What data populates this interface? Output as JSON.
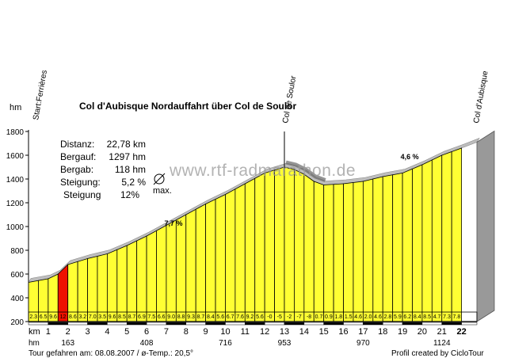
{
  "header": {
    "unit_top": "hm",
    "title": "Col d'Aubisque Nordauffahrt über Col de Soulor"
  },
  "stats": [
    {
      "label": "Distanz:",
      "value": "22,78 km"
    },
    {
      "label": "Bergauf:",
      "value": "1297 hm"
    },
    {
      "label": "Bergab:",
      "value": "118 hm"
    },
    {
      "label": "Steigung:",
      "value": "5,2 %"
    },
    {
      "label": "Steigung",
      "value": "12%"
    }
  ],
  "max_label": "max.",
  "watermark": "www.rtf-radmarathon.de",
  "footer": {
    "left": "Tour gefahren am: 08.08.2007 / ø-Temp.: 20,5°",
    "right": "Profil created by CicloTour"
  },
  "colors": {
    "fill": "#ffff33",
    "steep": "#ee1100",
    "outline": "#000000",
    "shadow": "#999999"
  },
  "chart_data": {
    "type": "area",
    "ylim": [
      200,
      1800
    ],
    "xlim": [
      0,
      22.78
    ],
    "y_ticks": [
      "200",
      "400",
      "600",
      "800",
      "1000",
      "1200",
      "1400",
      "1600",
      "1800"
    ],
    "x_label": "km",
    "x_ticks": [
      "1",
      "2",
      "3",
      "4",
      "5",
      "6",
      "7",
      "8",
      "9",
      "10",
      "11",
      "12",
      "13",
      "14",
      "15",
      "16",
      "17",
      "18",
      "19",
      "20",
      "21",
      "22"
    ],
    "hm_label": "hm",
    "hm_marks": [
      {
        "km": 2,
        "text": "163"
      },
      {
        "km": 6,
        "text": "408"
      },
      {
        "km": 10,
        "text": "716"
      },
      {
        "km": 13,
        "text": "953"
      },
      {
        "km": 17,
        "text": "970"
      },
      {
        "km": 21,
        "text": "1124"
      }
    ],
    "waypoints": [
      {
        "km": 0,
        "name": "Start:Ferrières"
      },
      {
        "km": 13,
        "name": "Col de Soulor"
      },
      {
        "km": 22.78,
        "name": "Col d'Aubisque"
      }
    ],
    "annotations": [
      {
        "km": 6.9,
        "elevation": 1020,
        "text": "7,7 %"
      },
      {
        "km": 18.9,
        "elevation": 1580,
        "text": "4,6 %"
      }
    ],
    "profile": [
      {
        "x": 0,
        "y": 530
      },
      {
        "x": 1,
        "y": 560
      },
      {
        "x": 1.5,
        "y": 600
      },
      {
        "x": 2,
        "y": 680
      },
      {
        "x": 3,
        "y": 730
      },
      {
        "x": 4,
        "y": 770
      },
      {
        "x": 5,
        "y": 840
      },
      {
        "x": 6,
        "y": 920
      },
      {
        "x": 7,
        "y": 1010
      },
      {
        "x": 8,
        "y": 1100
      },
      {
        "x": 9,
        "y": 1190
      },
      {
        "x": 10,
        "y": 1270
      },
      {
        "x": 11,
        "y": 1360
      },
      {
        "x": 12,
        "y": 1450
      },
      {
        "x": 13,
        "y": 1500
      },
      {
        "x": 13.5,
        "y": 1480
      },
      {
        "x": 14,
        "y": 1440
      },
      {
        "x": 14.5,
        "y": 1380
      },
      {
        "x": 15,
        "y": 1350
      },
      {
        "x": 16,
        "y": 1360
      },
      {
        "x": 17,
        "y": 1380
      },
      {
        "x": 18,
        "y": 1420
      },
      {
        "x": 19,
        "y": 1450
      },
      {
        "x": 20,
        "y": 1520
      },
      {
        "x": 21,
        "y": 1600
      },
      {
        "x": 22,
        "y": 1660
      },
      {
        "x": 22.78,
        "y": 1710
      }
    ],
    "segments": [
      {
        "km": 1,
        "grade": "2.3"
      },
      {
        "km": 2,
        "grade": "6.5"
      },
      {
        "km": 3,
        "grade": "9.6"
      },
      {
        "km": 4,
        "grade": "12"
      },
      {
        "km": 5,
        "grade": "8.6"
      },
      {
        "km": 6,
        "grade": "3.2"
      },
      {
        "km": 7,
        "grade": "7.0"
      },
      {
        "km": 8,
        "grade": "3.5"
      },
      {
        "km": 9,
        "grade": "9.6"
      },
      {
        "km": 10,
        "grade": "8.5"
      },
      {
        "km": 11,
        "grade": "8.7"
      },
      {
        "km": 12,
        "grade": "6.9"
      },
      {
        "km": 13,
        "grade": "7.5"
      },
      {
        "km": 14,
        "grade": "6.6"
      },
      {
        "km": 15,
        "grade": "9.0"
      },
      {
        "km": 16,
        "grade": "8.8"
      },
      {
        "km": 17,
        "grade": "9.3"
      },
      {
        "km": 18,
        "grade": "8.7"
      },
      {
        "km": 19,
        "grade": "8.4"
      },
      {
        "km": 20,
        "grade": "5.6"
      },
      {
        "km": 21,
        "grade": "6.7"
      },
      {
        "km": 22,
        "grade": "7.6"
      },
      {
        "km": 23,
        "grade": "9.2"
      },
      {
        "km": 24,
        "grade": "5.6"
      },
      {
        "km": 25,
        "grade": "-0"
      },
      {
        "km": 26,
        "grade": "-5"
      },
      {
        "km": 27,
        "grade": "-2"
      },
      {
        "km": 28,
        "grade": "-7"
      },
      {
        "km": 29,
        "grade": "-8"
      },
      {
        "km": 30,
        "grade": "0.7"
      },
      {
        "km": 31,
        "grade": "0.9"
      },
      {
        "km": 32,
        "grade": "1.8"
      },
      {
        "km": 33,
        "grade": "1.5"
      },
      {
        "km": 34,
        "grade": "4.6"
      },
      {
        "km": 35,
        "grade": "2.0"
      },
      {
        "km": 36,
        "grade": "4.6"
      },
      {
        "km": 37,
        "grade": "2.8"
      },
      {
        "km": 38,
        "grade": "5.9"
      },
      {
        "km": 39,
        "grade": "6.2"
      },
      {
        "km": 40,
        "grade": "8.4"
      },
      {
        "km": 41,
        "grade": "8.5"
      },
      {
        "km": 42,
        "grade": "4.7"
      },
      {
        "km": 43,
        "grade": "7.3"
      },
      {
        "km": 44,
        "grade": "7.8"
      }
    ]
  }
}
